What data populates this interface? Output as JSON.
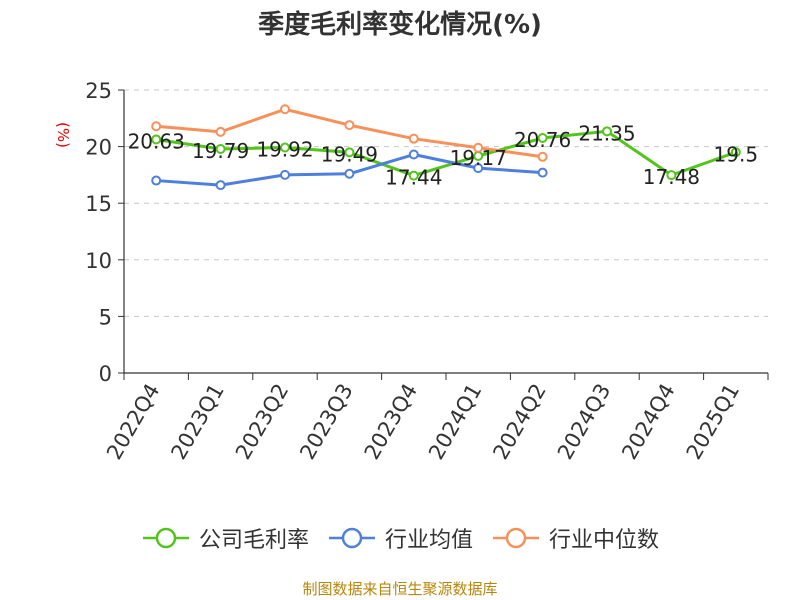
{
  "chart_data": {
    "type": "line",
    "title": "季度毛利率变化情况(%)",
    "ylabel": "(%)",
    "xlabel": "",
    "ylim": [
      0,
      25
    ],
    "yticks": [
      0,
      5,
      10,
      15,
      20,
      25
    ],
    "grid": true,
    "legend_position": "bottom",
    "categories": [
      "2022Q4",
      "2023Q1",
      "2023Q2",
      "2023Q3",
      "2023Q4",
      "2024Q1",
      "2024Q2",
      "2024Q3",
      "2024Q4",
      "2025Q1"
    ],
    "series": [
      {
        "name": "公司毛利率",
        "color": "#52c41a",
        "values": [
          20.63,
          19.79,
          19.92,
          19.49,
          17.44,
          19.17,
          20.76,
          21.35,
          17.48,
          19.5
        ],
        "data_labels": [
          "20.63",
          "19.79",
          "19.92",
          "19.49",
          "17.44",
          "19.17",
          "20.76",
          "21.35",
          "17.48",
          "19.5"
        ]
      },
      {
        "name": "行业均值",
        "color": "#4e7fdd",
        "values": [
          17.0,
          16.6,
          17.5,
          17.6,
          19.3,
          18.1,
          17.7,
          null,
          null,
          null
        ]
      },
      {
        "name": "行业中位数",
        "color": "#f79059",
        "values": [
          21.8,
          21.3,
          23.3,
          21.9,
          20.7,
          19.9,
          19.1,
          null,
          null,
          null
        ]
      }
    ]
  },
  "footer": "制图数据来自恒生聚源数据库"
}
